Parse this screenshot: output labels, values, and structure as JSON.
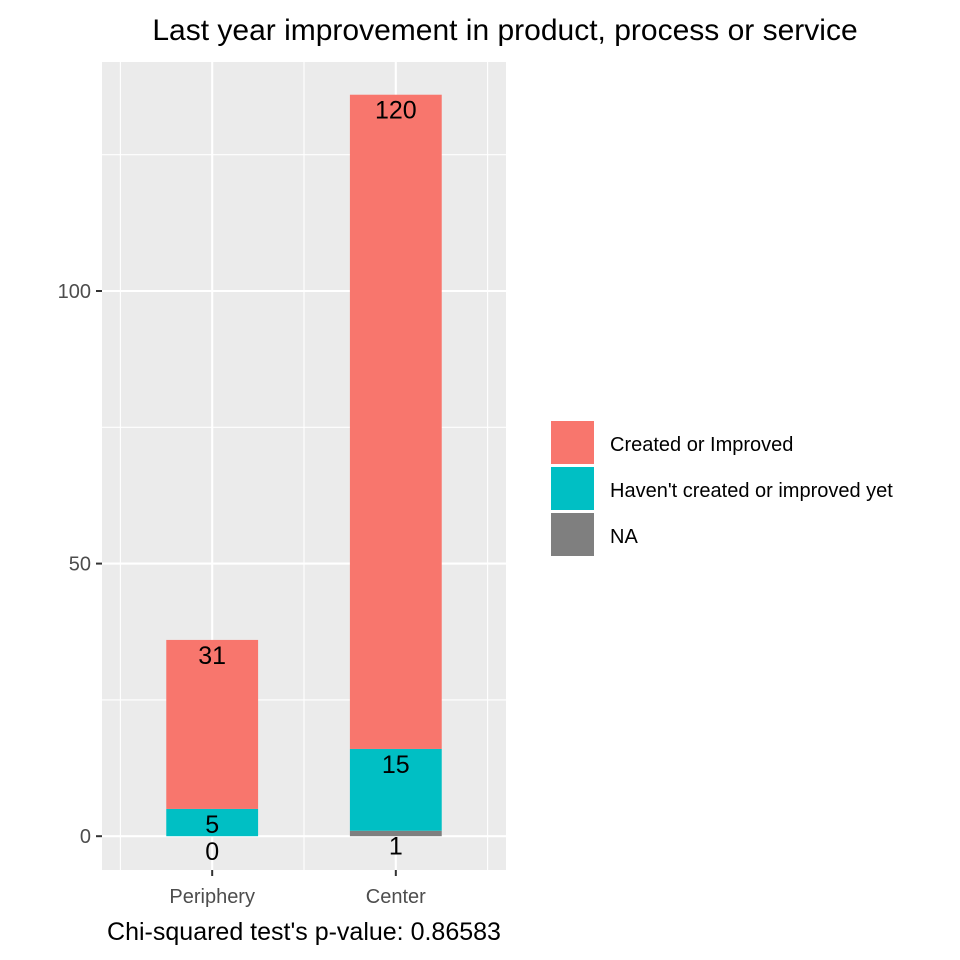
{
  "chart_data": {
    "type": "bar",
    "stacked": true,
    "title": "Last year improvement in product, process or service",
    "caption": "Chi-squared test's p-value: 0.86583",
    "xlabel": "",
    "ylabel": "",
    "categories": [
      "Periphery",
      "Center"
    ],
    "series": [
      {
        "name": "Created or Improved",
        "values": [
          31,
          120
        ],
        "color": "#F8766D"
      },
      {
        "name": "Haven't created or improved yet",
        "values": [
          5,
          15
        ],
        "color": "#00BFC4"
      },
      {
        "name": "NA",
        "values": [
          0,
          1
        ],
        "color": "#7F7F7F"
      }
    ],
    "yticks": [
      0,
      50,
      100
    ],
    "ylim": [
      -6.2,
      142
    ],
    "grid": true,
    "legend_position": "right",
    "background": "#EBEBEB",
    "gridline_color": "#FFFFFF"
  }
}
